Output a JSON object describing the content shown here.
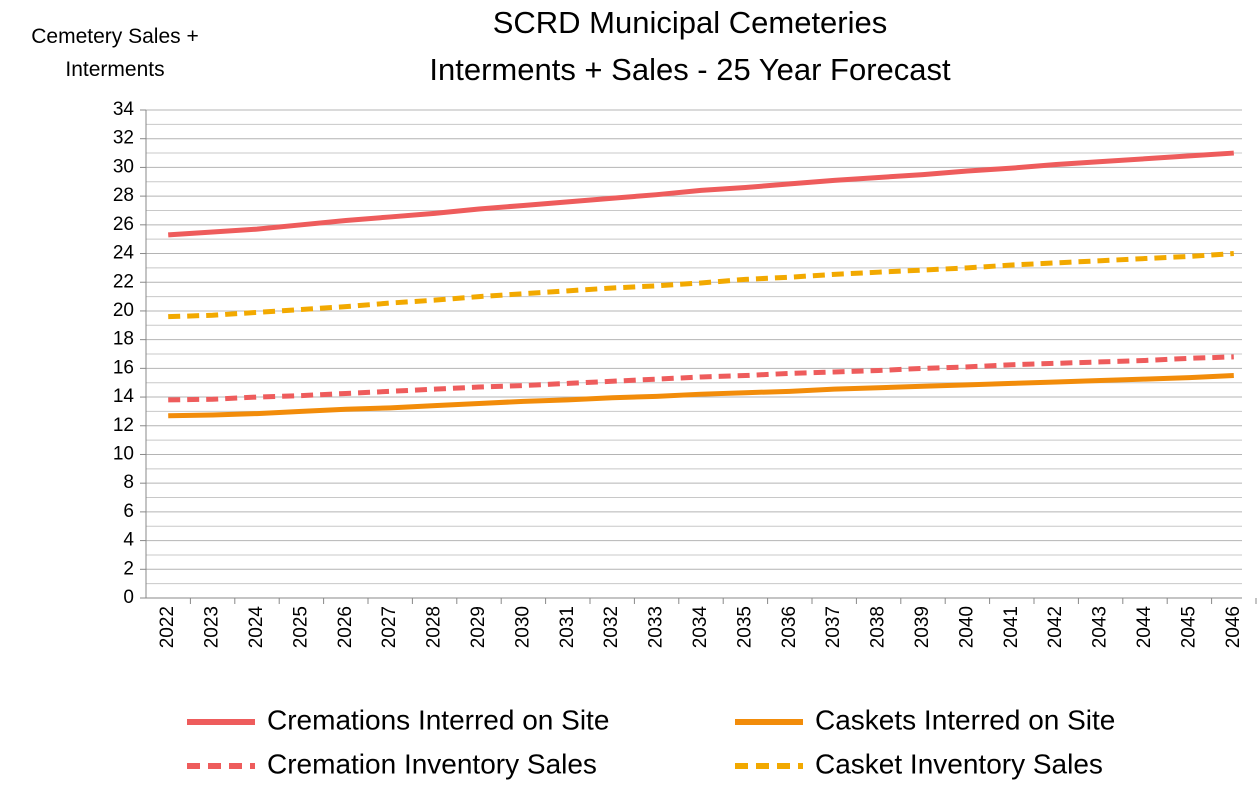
{
  "chart_data": {
    "type": "line",
    "title": "SCRD Municipal Cemeteries",
    "subtitle": "Interments + Sales - 25 Year Forecast",
    "y_label": "Cemetery Sales + Interments",
    "categories": [
      "2022",
      "2023",
      "2024",
      "2025",
      "2026",
      "2027",
      "2028",
      "2029",
      "2030",
      "2031",
      "2032",
      "2033",
      "2034",
      "2035",
      "2036",
      "2037",
      "2038",
      "2039",
      "2040",
      "2041",
      "2042",
      "2043",
      "2044",
      "2045",
      "2046"
    ],
    "series": [
      {
        "name": "Cremations Interred on Site",
        "color": "#ee5c5c",
        "dashed": false,
        "values": [
          25.3,
          25.5,
          25.7,
          26.0,
          26.3,
          26.55,
          26.8,
          27.1,
          27.35,
          27.6,
          27.85,
          28.1,
          28.4,
          28.6,
          28.85,
          29.1,
          29.3,
          29.5,
          29.75,
          29.95,
          30.2,
          30.4,
          30.6,
          30.8,
          31.0
        ]
      },
      {
        "name": "Caskets Interred on Site",
        "color": "#f28c0a",
        "dashed": false,
        "values": [
          12.7,
          12.75,
          12.85,
          13.0,
          13.15,
          13.25,
          13.4,
          13.55,
          13.7,
          13.8,
          13.95,
          14.05,
          14.2,
          14.3,
          14.4,
          14.55,
          14.65,
          14.75,
          14.85,
          14.95,
          15.05,
          15.15,
          15.25,
          15.35,
          15.5
        ]
      },
      {
        "name": "Cremation Inventory Sales",
        "color": "#ee5c5c",
        "dashed": true,
        "values": [
          13.8,
          13.85,
          14.0,
          14.1,
          14.25,
          14.4,
          14.55,
          14.7,
          14.8,
          14.95,
          15.1,
          15.25,
          15.4,
          15.5,
          15.65,
          15.75,
          15.85,
          16.0,
          16.1,
          16.25,
          16.35,
          16.45,
          16.55,
          16.7,
          16.8
        ]
      },
      {
        "name": "Casket Inventory Sales",
        "color": "#f2a900",
        "dashed": true,
        "values": [
          19.6,
          19.7,
          19.9,
          20.1,
          20.3,
          20.55,
          20.75,
          21.0,
          21.2,
          21.4,
          21.6,
          21.75,
          21.95,
          22.2,
          22.35,
          22.55,
          22.7,
          22.85,
          23.0,
          23.2,
          23.35,
          23.5,
          23.65,
          23.8,
          24.0
        ]
      }
    ],
    "ylim": [
      0,
      34
    ],
    "yticks": [
      0,
      2,
      4,
      6,
      8,
      10,
      12,
      14,
      16,
      18,
      20,
      22,
      24,
      26,
      28,
      30,
      32,
      34
    ],
    "grid": true,
    "minor_grid": true,
    "legend": "bottom"
  }
}
